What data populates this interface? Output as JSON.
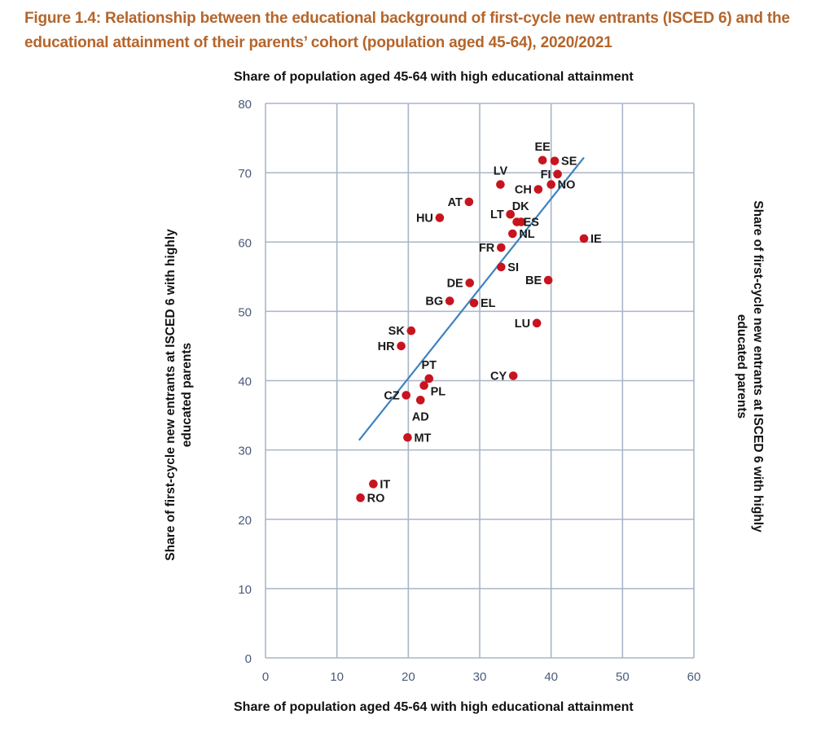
{
  "figure": {
    "title_line1": "Figure 1.4: Relationship between the educational background of first-cycle new entrants (ISCED 6) and the",
    "title_line2": "educational attainment of their parents’ cohort (population aged 45-64), 2020/2021",
    "title_color": "#B5652B"
  },
  "chart_data": {
    "type": "scatter",
    "title": "Figure 1.4: Relationship between the educational background of first-cycle new entrants (ISCED 6) and the educational attainment of their parents’ cohort (population aged 45-64), 2020/2021",
    "top_axis_title": "Share of population aged 45-64 with high educational attainment",
    "xlabel": "Share of population aged 45-64 with high educational attainment",
    "ylabel": "Share of first-cycle new entrants at ISCED 6 with highly educated parents",
    "ylabel_right": "Share of first-cycle new entrants at ISCED 6 with highly educated parents",
    "xlim": [
      0,
      60
    ],
    "ylim": [
      0,
      80
    ],
    "xticks": [
      0,
      10,
      20,
      30,
      40,
      50,
      60
    ],
    "yticks": [
      0,
      10,
      20,
      30,
      40,
      50,
      60,
      70,
      80
    ],
    "grid": true,
    "point_color": "#C8141E",
    "trend_color": "#3C82C0",
    "grid_color": "#A9B5C8",
    "points": [
      {
        "label": "EE",
        "x": 38.8,
        "y": 71.8,
        "label_side": "above"
      },
      {
        "label": "SE",
        "x": 40.5,
        "y": 71.7,
        "label_side": "right"
      },
      {
        "label": "FI",
        "x": 40.9,
        "y": 69.8,
        "label_side": "left"
      },
      {
        "label": "NO",
        "x": 40.0,
        "y": 68.3,
        "label_side": "right"
      },
      {
        "label": "LV",
        "x": 32.9,
        "y": 68.3,
        "label_side": "above"
      },
      {
        "label": "CH",
        "x": 38.2,
        "y": 67.6,
        "label_side": "left"
      },
      {
        "label": "AT",
        "x": 28.5,
        "y": 65.8,
        "label_side": "left"
      },
      {
        "label": "HU",
        "x": 24.4,
        "y": 63.5,
        "label_side": "left"
      },
      {
        "label": "DK",
        "x": 34.3,
        "y": 64.0,
        "label_side": "above-right"
      },
      {
        "label": "LT",
        "x": 34.3,
        "y": 64.0,
        "label_side": "left"
      },
      {
        "label": "ES",
        "x": 35.2,
        "y": 62.9,
        "label_side": "right"
      },
      {
        "label": "",
        "x": 35.8,
        "y": 62.9,
        "label_side": "none"
      },
      {
        "label": "NL",
        "x": 34.6,
        "y": 61.2,
        "label_side": "right"
      },
      {
        "label": "IE",
        "x": 44.6,
        "y": 60.5,
        "label_side": "right"
      },
      {
        "label": "FR",
        "x": 33.0,
        "y": 59.2,
        "label_side": "left"
      },
      {
        "label": "SI",
        "x": 33.0,
        "y": 56.4,
        "label_side": "right"
      },
      {
        "label": "BE",
        "x": 39.6,
        "y": 54.5,
        "label_side": "left"
      },
      {
        "label": "DE",
        "x": 28.6,
        "y": 54.1,
        "label_side": "left"
      },
      {
        "label": "BG",
        "x": 25.8,
        "y": 51.5,
        "label_side": "left"
      },
      {
        "label": "EL",
        "x": 29.2,
        "y": 51.2,
        "label_side": "right"
      },
      {
        "label": "LU",
        "x": 38.0,
        "y": 48.3,
        "label_side": "left"
      },
      {
        "label": "SK",
        "x": 20.4,
        "y": 47.2,
        "label_side": "left"
      },
      {
        "label": "HR",
        "x": 19.0,
        "y": 45.0,
        "label_side": "left"
      },
      {
        "label": "CY",
        "x": 34.7,
        "y": 40.7,
        "label_side": "left"
      },
      {
        "label": "PT",
        "x": 22.9,
        "y": 40.3,
        "label_side": "above"
      },
      {
        "label": "PL",
        "x": 22.2,
        "y": 39.3,
        "label_side": "below-right"
      },
      {
        "label": "CZ",
        "x": 19.7,
        "y": 37.9,
        "label_side": "left"
      },
      {
        "label": "AD",
        "x": 21.7,
        "y": 37.2,
        "label_side": "below"
      },
      {
        "label": "MT",
        "x": 19.9,
        "y": 31.8,
        "label_side": "right"
      },
      {
        "label": "IT",
        "x": 15.1,
        "y": 25.1,
        "label_side": "right"
      },
      {
        "label": "RO",
        "x": 13.3,
        "y": 23.1,
        "label_side": "right"
      }
    ],
    "trend_line": {
      "x": [
        13.1,
        44.6
      ],
      "y": [
        31.4,
        72.2
      ]
    }
  }
}
